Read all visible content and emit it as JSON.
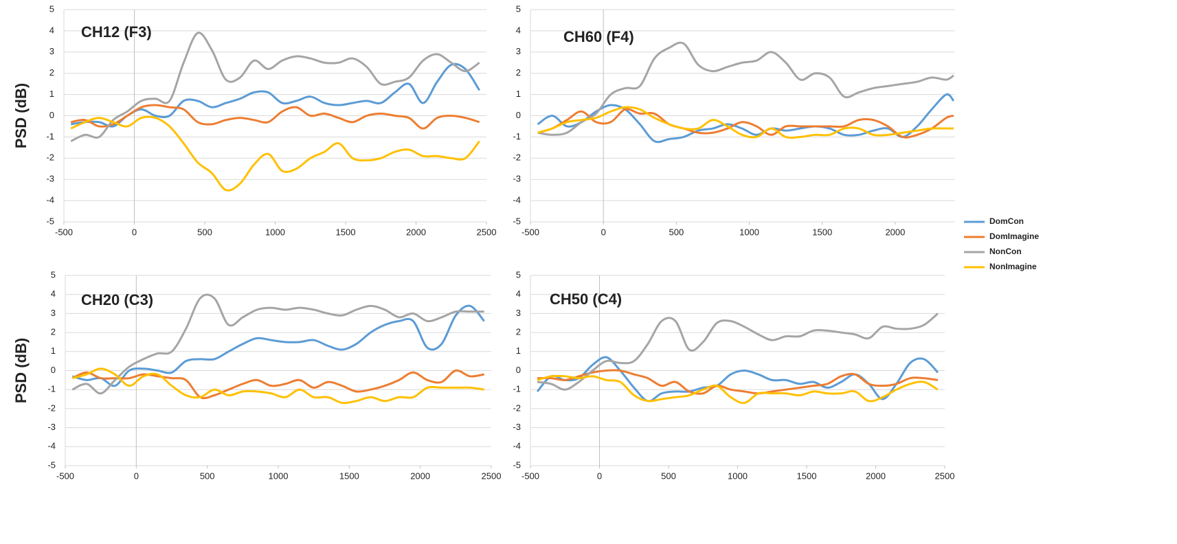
{
  "chart_data": [
    {
      "type": "line",
      "title": "CH12 (F3)",
      "ylabel": "PSD (dB)",
      "x": [
        -450,
        -350,
        -250,
        -150,
        -50,
        50,
        150,
        250,
        350,
        450,
        550,
        650,
        750,
        850,
        950,
        1050,
        1150,
        1250,
        1350,
        1450,
        1550,
        1650,
        1750,
        1850,
        1950,
        2050,
        2150,
        2250,
        2350,
        2450
      ],
      "xlim": [
        -500,
        2500
      ],
      "xticks": [
        -500,
        0,
        500,
        1000,
        1500,
        2000,
        2500
      ],
      "ylim": [
        -5,
        5
      ],
      "yticks": [
        -5,
        -4,
        -3,
        -2,
        -1,
        0,
        1,
        2,
        3,
        4,
        5
      ],
      "grid": true,
      "series": [
        {
          "name": "DomCon",
          "color": "#5b9bd5",
          "values": [
            -0.4,
            -0.3,
            -0.3,
            -0.5,
            0,
            0.3,
            0,
            0,
            0.7,
            0.7,
            0.4,
            0.6,
            0.8,
            1.1,
            1.1,
            0.6,
            0.7,
            0.9,
            0.6,
            0.5,
            0.6,
            0.7,
            0.6,
            1.1,
            1.5,
            0.6,
            1.6,
            2.4,
            2.2,
            1.2
          ]
        },
        {
          "name": "DomImagine",
          "color": "#ed7d31",
          "values": [
            -0.3,
            -0.2,
            -0.5,
            -0.4,
            0,
            0.4,
            0.5,
            0.4,
            0.3,
            -0.3,
            -0.4,
            -0.2,
            -0.1,
            -0.2,
            -0.3,
            0.2,
            0.4,
            0,
            0.1,
            -0.1,
            -0.3,
            0,
            0.1,
            0,
            -0.1,
            -0.6,
            -0.1,
            0,
            -0.1,
            -0.3
          ]
        },
        {
          "name": "NonCon",
          "color": "#a5a5a5",
          "values": [
            -1.2,
            -0.9,
            -1,
            -0.2,
            0.2,
            0.7,
            0.8,
            0.7,
            2.5,
            3.9,
            3.1,
            1.7,
            1.8,
            2.6,
            2.2,
            2.6,
            2.8,
            2.7,
            2.5,
            2.5,
            2.7,
            2.3,
            1.5,
            1.6,
            1.8,
            2.6,
            2.9,
            2.5,
            2.1,
            2.5
          ]
        },
        {
          "name": "NonImagine",
          "color": "#ffc000",
          "values": [
            -0.6,
            -0.3,
            -0.1,
            -0.3,
            -0.5,
            -0.1,
            -0.1,
            -0.5,
            -1.3,
            -2.2,
            -2.7,
            -3.5,
            -3.2,
            -2.3,
            -1.8,
            -2.6,
            -2.5,
            -2,
            -1.7,
            -1.3,
            -2,
            -2.1,
            -2,
            -1.7,
            -1.6,
            -1.9,
            -1.9,
            -2,
            -2,
            -1.2
          ]
        }
      ]
    },
    {
      "type": "line",
      "title": "CH60 (F4)",
      "legend": "right",
      "x": [
        -450,
        -350,
        -250,
        -150,
        -50,
        50,
        150,
        250,
        350,
        450,
        550,
        650,
        750,
        850,
        950,
        1050,
        1150,
        1250,
        1350,
        1450,
        1550,
        1650,
        1750,
        1850,
        1950,
        2050,
        2150,
        2250,
        2350,
        2400
      ],
      "xlim": [
        -500,
        2410
      ],
      "xticks": [
        -500,
        0,
        500,
        1000,
        1500,
        2000
      ],
      "ylim": [
        -5,
        5
      ],
      "yticks": [
        -5,
        -4,
        -3,
        -2,
        -1,
        0,
        1,
        2,
        3,
        4,
        5
      ],
      "grid": true,
      "series": [
        {
          "name": "DomCon",
          "color": "#5b9bd5",
          "values": [
            -0.4,
            0,
            -0.5,
            -0.3,
            0.2,
            0.5,
            0.3,
            -0.4,
            -1.2,
            -1.1,
            -1,
            -0.7,
            -0.6,
            -0.4,
            -0.6,
            -0.9,
            -0.6,
            -0.7,
            -0.6,
            -0.5,
            -0.6,
            -0.9,
            -0.9,
            -0.7,
            -0.6,
            -1,
            -0.5,
            0.3,
            1,
            0.7
          ]
        },
        {
          "name": "DomImagine",
          "color": "#ed7d31",
          "values": [
            -0.8,
            -0.6,
            -0.2,
            0.2,
            -0.3,
            -0.3,
            0.3,
            0.1,
            0.1,
            -0.4,
            -0.6,
            -0.8,
            -0.8,
            -0.6,
            -0.3,
            -0.5,
            -0.9,
            -0.5,
            -0.5,
            -0.5,
            -0.5,
            -0.5,
            -0.2,
            -0.2,
            -0.5,
            -1,
            -0.9,
            -0.6,
            -0.1,
            0
          ]
        },
        {
          "name": "NonCon",
          "color": "#a5a5a5",
          "values": [
            -0.8,
            -0.9,
            -0.8,
            -0.3,
            0.1,
            1,
            1.3,
            1.4,
            2.7,
            3.2,
            3.4,
            2.4,
            2.1,
            2.3,
            2.5,
            2.6,
            3,
            2.5,
            1.7,
            2,
            1.8,
            0.9,
            1.1,
            1.3,
            1.4,
            1.5,
            1.6,
            1.8,
            1.7,
            1.9
          ]
        },
        {
          "name": "NonImagine",
          "color": "#ffc000",
          "values": [
            -0.8,
            -0.6,
            -0.3,
            -0.2,
            -0.1,
            0.2,
            0.4,
            0.3,
            -0.1,
            -0.4,
            -0.6,
            -0.6,
            -0.2,
            -0.5,
            -0.9,
            -1,
            -0.6,
            -1,
            -1,
            -0.9,
            -0.9,
            -0.6,
            -0.6,
            -0.9,
            -0.9,
            -0.8,
            -0.7,
            -0.6,
            -0.6,
            -0.6
          ]
        }
      ]
    },
    {
      "type": "line",
      "title": "CH20 (C3)",
      "ylabel": "PSD (dB)",
      "x": [
        -450,
        -350,
        -250,
        -150,
        -50,
        50,
        150,
        250,
        350,
        450,
        550,
        650,
        750,
        850,
        950,
        1050,
        1150,
        1250,
        1350,
        1450,
        1550,
        1650,
        1750,
        1850,
        1950,
        2050,
        2150,
        2250,
        2350,
        2450
      ],
      "xlim": [
        -500,
        2500
      ],
      "xticks": [
        -500,
        0,
        500,
        1000,
        1500,
        2000,
        2500
      ],
      "ylim": [
        -5,
        5
      ],
      "yticks": [
        -5,
        -4,
        -3,
        -2,
        -1,
        0,
        1,
        2,
        3,
        4,
        5
      ],
      "grid": true,
      "series": [
        {
          "name": "DomCon",
          "color": "#5b9bd5",
          "values": [
            -0.3,
            -0.5,
            -0.4,
            -0.8,
            0,
            0.1,
            0,
            -0.1,
            0.5,
            0.6,
            0.6,
            1,
            1.4,
            1.7,
            1.6,
            1.5,
            1.5,
            1.6,
            1.3,
            1.1,
            1.4,
            2,
            2.4,
            2.6,
            2.6,
            1.2,
            1.4,
            2.9,
            3.4,
            2.6
          ]
        },
        {
          "name": "DomImagine",
          "color": "#ed7d31",
          "values": [
            -0.4,
            -0.1,
            -0.4,
            -0.4,
            -0.4,
            -0.2,
            -0.3,
            -0.4,
            -0.5,
            -1.4,
            -1.3,
            -1,
            -0.7,
            -0.5,
            -0.8,
            -0.7,
            -0.5,
            -0.9,
            -0.6,
            -0.8,
            -1.1,
            -1,
            -0.8,
            -0.5,
            -0.1,
            -0.5,
            -0.6,
            0,
            -0.3,
            -0.2
          ]
        },
        {
          "name": "NonCon",
          "color": "#a5a5a5",
          "values": [
            -1,
            -0.7,
            -1.2,
            -0.5,
            0.2,
            0.6,
            0.9,
            1,
            2.2,
            3.8,
            3.8,
            2.4,
            2.8,
            3.2,
            3.3,
            3.2,
            3.3,
            3.2,
            3,
            2.9,
            3.2,
            3.4,
            3.2,
            2.8,
            3,
            2.6,
            2.8,
            3.1,
            3.1,
            3.1
          ]
        },
        {
          "name": "NonImagine",
          "color": "#ffc000",
          "values": [
            -0.4,
            -0.2,
            0.1,
            -0.2,
            -0.8,
            -0.3,
            -0.2,
            -0.8,
            -1.3,
            -1.4,
            -1,
            -1.3,
            -1.1,
            -1.1,
            -1.2,
            -1.4,
            -1,
            -1.4,
            -1.4,
            -1.7,
            -1.6,
            -1.4,
            -1.6,
            -1.4,
            -1.4,
            -0.9,
            -0.9,
            -0.9,
            -0.9,
            -1
          ]
        }
      ]
    },
    {
      "type": "line",
      "title": "CH50 (C4)",
      "x": [
        -450,
        -350,
        -250,
        -150,
        -50,
        50,
        150,
        250,
        350,
        450,
        550,
        650,
        750,
        850,
        950,
        1050,
        1150,
        1250,
        1350,
        1450,
        1550,
        1650,
        1750,
        1850,
        1950,
        2050,
        2150,
        2250,
        2350,
        2450
      ],
      "xlim": [
        -500,
        2500
      ],
      "xticks": [
        -500,
        0,
        500,
        1000,
        1500,
        2000,
        2500
      ],
      "ylim": [
        -5,
        5
      ],
      "yticks": [
        -5,
        -4,
        -3,
        -2,
        -1,
        0,
        1,
        2,
        3,
        4,
        5
      ],
      "grid": true,
      "series": [
        {
          "name": "DomCon",
          "color": "#5b9bd5",
          "values": [
            -1.1,
            -0.3,
            -0.5,
            -0.4,
            0.3,
            0.7,
            0,
            -0.9,
            -1.6,
            -1.2,
            -1.1,
            -1.1,
            -0.9,
            -0.8,
            -0.2,
            0,
            -0.2,
            -0.5,
            -0.5,
            -0.7,
            -0.6,
            -0.9,
            -0.6,
            -0.2,
            -0.7,
            -1.5,
            -0.7,
            0.4,
            0.6,
            -0.1
          ]
        },
        {
          "name": "DomImagine",
          "color": "#ed7d31",
          "values": [
            -0.4,
            -0.4,
            -0.5,
            -0.3,
            -0.1,
            0,
            0,
            -0.2,
            -0.4,
            -0.8,
            -0.6,
            -1.1,
            -1.2,
            -0.8,
            -1,
            -1.1,
            -1.2,
            -1.1,
            -1,
            -0.9,
            -0.8,
            -0.7,
            -0.3,
            -0.2,
            -0.7,
            -0.8,
            -0.7,
            -0.4,
            -0.4,
            -0.5
          ]
        },
        {
          "name": "NonCon",
          "color": "#a5a5a5",
          "values": [
            -0.6,
            -0.7,
            -1,
            -0.6,
            0,
            0.5,
            0.4,
            0.5,
            1.4,
            2.6,
            2.6,
            1.1,
            1.5,
            2.5,
            2.6,
            2.3,
            1.9,
            1.6,
            1.8,
            1.8,
            2.1,
            2.1,
            2,
            1.9,
            1.7,
            2.3,
            2.2,
            2.2,
            2.4,
            3
          ]
        },
        {
          "name": "NonImagine",
          "color": "#ffc000",
          "values": [
            -0.5,
            -0.3,
            -0.3,
            -0.4,
            -0.3,
            -0.5,
            -0.6,
            -1.3,
            -1.6,
            -1.5,
            -1.4,
            -1.3,
            -1,
            -0.8,
            -1.4,
            -1.7,
            -1.2,
            -1.2,
            -1.2,
            -1.3,
            -1.1,
            -1.2,
            -1.2,
            -1.1,
            -1.6,
            -1.4,
            -1,
            -0.7,
            -0.6,
            -1
          ]
        }
      ]
    }
  ]
}
